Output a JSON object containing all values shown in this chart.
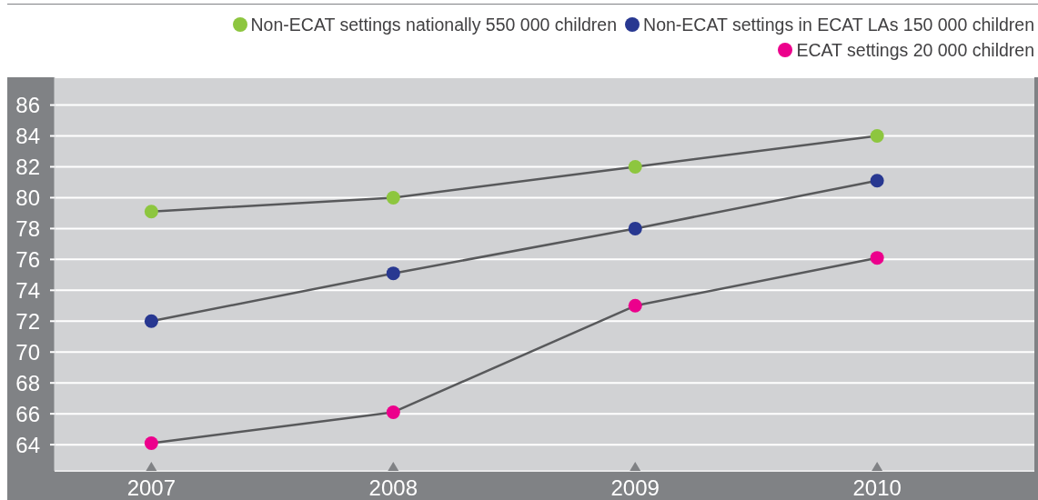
{
  "chart_data": {
    "type": "line",
    "x": [
      2007,
      2008,
      2009,
      2010
    ],
    "xlim": [
      2006.6,
      2010.65
    ],
    "xticks": [
      2007,
      2008,
      2009,
      2010
    ],
    "ylim": [
      62.3,
      87.8
    ],
    "yticks": [
      64,
      66,
      68,
      70,
      72,
      74,
      76,
      78,
      80,
      82,
      84,
      86
    ],
    "series": [
      {
        "name": "Non-ECAT settings nationally 550 000 children",
        "color": "#8dc63f",
        "values": [
          79.1,
          80,
          82,
          84
        ]
      },
      {
        "name": "Non-ECAT settings in ECAT LAs 150 000 children",
        "color": "#283891",
        "values": [
          72,
          75.1,
          78,
          81.1
        ]
      },
      {
        "name": "ECAT settings 20 000 children",
        "color": "#ec008c",
        "values": [
          64.1,
          66.1,
          73,
          76.1
        ]
      }
    ],
    "grid": "y",
    "legend": "top right",
    "marker": "circle",
    "line_style": "solid"
  }
}
